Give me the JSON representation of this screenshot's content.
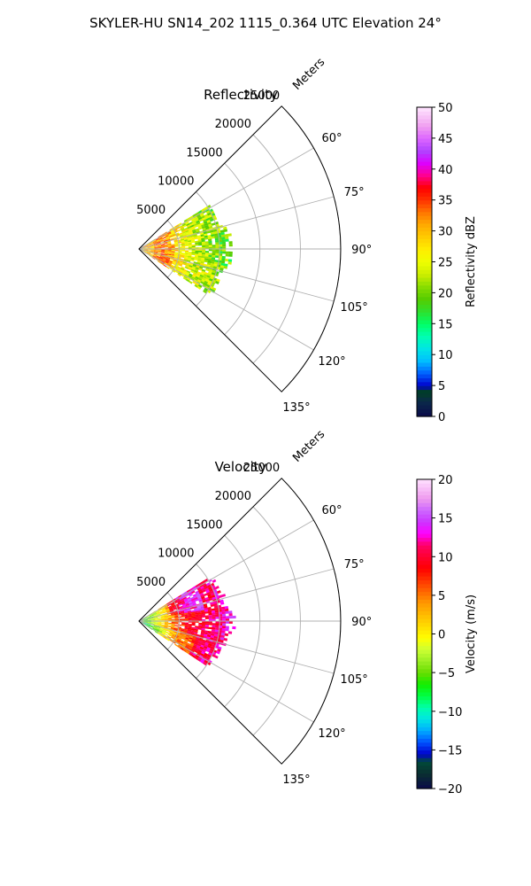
{
  "figure_title": "SKYLER-HU  SN14_202  1115_0.364 UTC Elevation 24°",
  "chart_data": [
    {
      "type": "polar-sector",
      "title": "Reflectivity",
      "range_label": "Meters",
      "range_ticks": [
        5000,
        10000,
        15000,
        20000,
        25000
      ],
      "range_tick_labels": [
        "5000",
        "10000",
        "15000",
        "20000",
        "25000"
      ],
      "range_max": 25000,
      "azimuth_range": [
        45,
        135
      ],
      "azimuth_ticks": [
        60,
        75,
        90,
        105,
        120,
        135
      ],
      "azimuth_tick_labels": [
        "60°",
        "75°",
        "90°",
        "105°",
        "120°",
        "135°"
      ],
      "grid": true,
      "colorbar": {
        "label": "Reflectivity dBZ",
        "range": [
          0,
          50
        ],
        "ticks": [
          0,
          5,
          10,
          15,
          20,
          25,
          30,
          35,
          40,
          45,
          50
        ],
        "tick_labels": [
          "0",
          "5",
          "10",
          "15",
          "20",
          "25",
          "30",
          "35",
          "40",
          "45",
          "50"
        ]
      },
      "data_extent": {
        "azimuth_deg": [
          58,
          122
        ],
        "max_range_m": 12000
      },
      "profile": [
        {
          "r_m": 1500,
          "value": 30
        },
        {
          "r_m": 3000,
          "value": 34
        },
        {
          "r_m": 4500,
          "value": 28
        },
        {
          "r_m": 7000,
          "value": 23
        },
        {
          "r_m": 10000,
          "value": 20
        },
        {
          "r_m": 12000,
          "value": 18
        }
      ]
    },
    {
      "type": "polar-sector",
      "title": "Velocity",
      "range_label": "Meters",
      "range_ticks": [
        5000,
        10000,
        15000,
        20000,
        25000
      ],
      "range_tick_labels": [
        "5000",
        "10000",
        "15000",
        "20000",
        "25000"
      ],
      "range_max": 25000,
      "azimuth_range": [
        45,
        135
      ],
      "azimuth_ticks": [
        60,
        75,
        90,
        105,
        120,
        135
      ],
      "azimuth_tick_labels": [
        "60°",
        "75°",
        "90°",
        "105°",
        "120°",
        "135°"
      ],
      "grid": true,
      "colorbar": {
        "label": "Velocity (m/s)",
        "range": [
          -20,
          20
        ],
        "ticks": [
          -20,
          -15,
          -10,
          -5,
          0,
          5,
          10,
          15,
          20
        ],
        "tick_labels": [
          "−20",
          "−15",
          "−10",
          "−5",
          "0",
          "5",
          "10",
          "15",
          "20"
        ]
      },
      "data_extent": {
        "azimuth_deg": [
          58,
          122
        ],
        "max_range_m": 12000
      },
      "profile": [
        {
          "r_m": 1000,
          "value": -5
        },
        {
          "r_m": 2500,
          "value": 0
        },
        {
          "r_m": 4000,
          "value": 5
        },
        {
          "r_m": 6000,
          "value": 9
        },
        {
          "r_m": 9000,
          "value": 11
        },
        {
          "r_m": 12000,
          "value": 14
        }
      ]
    }
  ]
}
